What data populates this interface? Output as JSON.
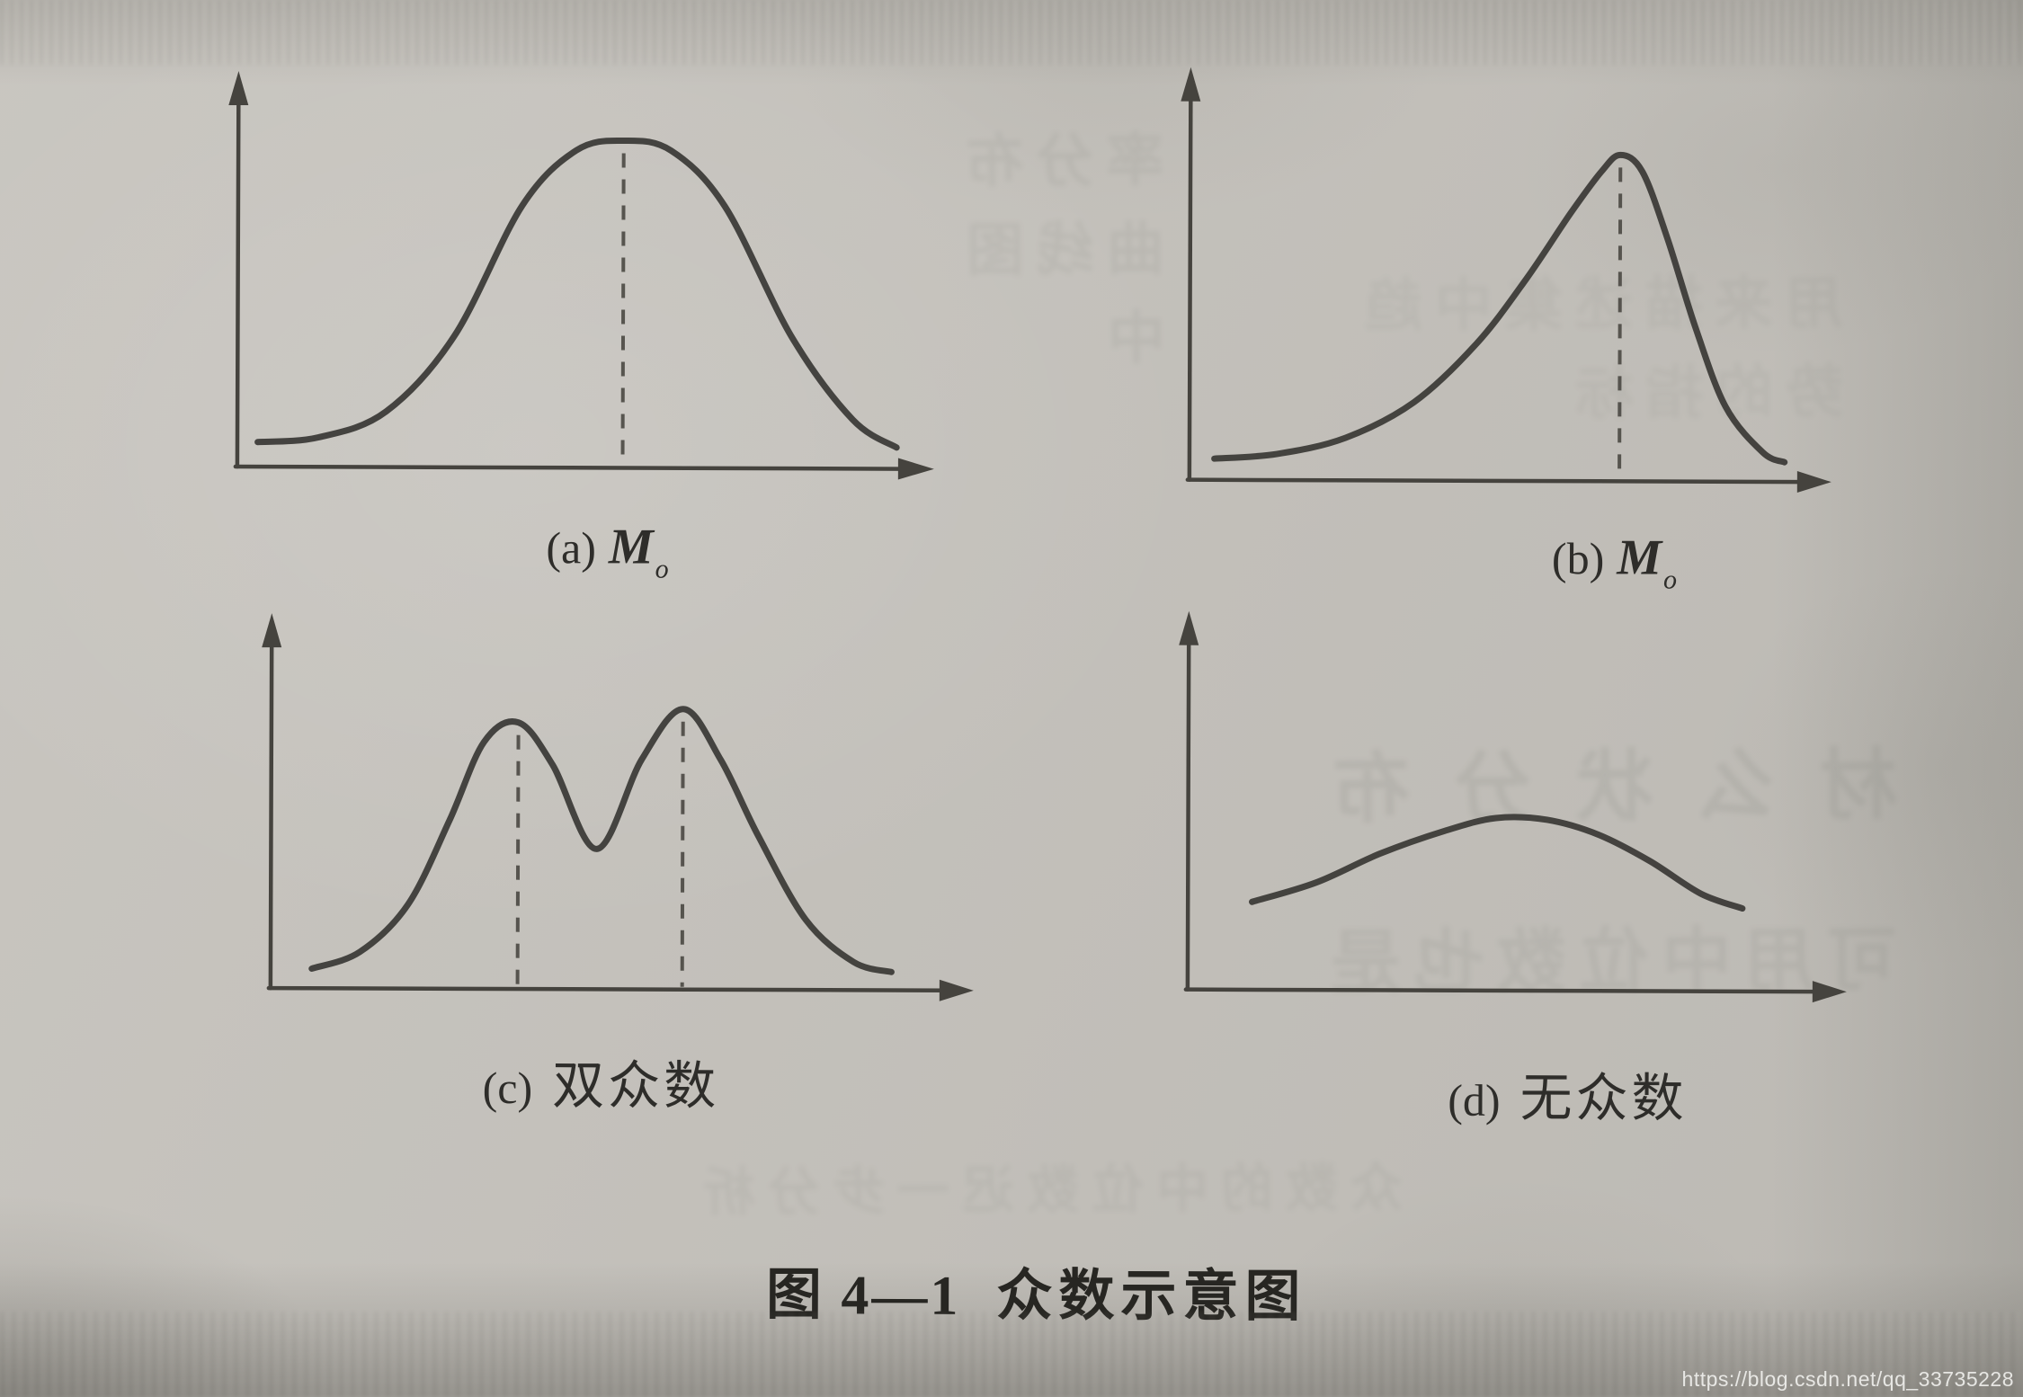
{
  "page": {
    "paper_color": "#c6c3bd",
    "ink_color": "#3a3936",
    "edge_shade_color": "#4e4c46"
  },
  "figure": {
    "panels": [
      {
        "id": "a",
        "label_prefix": "(a)",
        "label_symbol": "M",
        "label_subscript": "o"
      },
      {
        "id": "b",
        "label_prefix": "(b)",
        "label_symbol": "M",
        "label_subscript": "o"
      },
      {
        "id": "c",
        "label_prefix": "(c)",
        "label_text": "双众数"
      },
      {
        "id": "d",
        "label_prefix": "(d)",
        "label_text": "无众数"
      }
    ],
    "caption": {
      "prefix": "图 4—1",
      "text": "众数示意图"
    }
  },
  "watermark": {
    "url": "https://blog.csdn.net/qq_33735228"
  },
  "bleedthrough": {
    "illegible": true,
    "fragments": [
      "材 么 状 分 布",
      "可用中位数也是",
      "率分布曲线图中",
      "用来描述集中趋势的指标",
      "众数的中位数迟一步分析"
    ]
  },
  "chart_data": [
    {
      "id": "a",
      "type": "line",
      "title": "(a) M_o",
      "description": "Symmetric unimodal (bell-shaped) frequency curve; dashed vertical line marks the single mode M_o at the peak.",
      "xlabel": "",
      "ylabel": "",
      "axis_ticks": "none (schematic, arrowed axes)",
      "xlim": [
        0,
        1
      ],
      "ylim": [
        0,
        1
      ],
      "mode_lines_x": [
        0.57
      ],
      "curve": {
        "x": [
          0.03,
          0.12,
          0.22,
          0.32,
          0.42,
          0.5,
          0.57,
          0.64,
          0.72,
          0.82,
          0.91,
          0.975
        ],
        "y": [
          0.075,
          0.09,
          0.17,
          0.4,
          0.8,
          0.97,
          1.0,
          0.97,
          0.8,
          0.4,
          0.15,
          0.065
        ]
      }
    },
    {
      "id": "b",
      "type": "line",
      "title": "(b) M_o",
      "description": "Negatively skewed unimodal curve (long left tail); dashed vertical line marks the mode M_o near the right peak.",
      "xlabel": "",
      "ylabel": "",
      "axis_ticks": "none (schematic, arrowed axes)",
      "xlim": [
        0,
        1
      ],
      "ylim": [
        0,
        1
      ],
      "mode_lines_x": [
        0.69
      ],
      "curve": {
        "x": [
          0.04,
          0.14,
          0.25,
          0.36,
          0.46,
          0.54,
          0.61,
          0.66,
          0.69,
          0.725,
          0.765,
          0.81,
          0.86,
          0.92,
          0.955
        ],
        "y": [
          0.065,
          0.08,
          0.13,
          0.24,
          0.42,
          0.62,
          0.82,
          0.95,
          1.0,
          0.95,
          0.75,
          0.48,
          0.23,
          0.09,
          0.06
        ]
      }
    },
    {
      "id": "c",
      "type": "line",
      "title": "(c) 双众数",
      "description": "Bimodal frequency curve with two peaks; dashed vertical lines mark the two modes.",
      "xlabel": "",
      "ylabel": "",
      "axis_ticks": "none (schematic, arrowed axes)",
      "xlim": [
        0,
        1
      ],
      "ylim": [
        0,
        1
      ],
      "mode_lines_x": [
        0.36,
        0.6
      ],
      "curve": {
        "x": [
          0.06,
          0.13,
          0.2,
          0.26,
          0.31,
          0.36,
          0.41,
          0.475,
          0.54,
          0.6,
          0.655,
          0.71,
          0.78,
          0.85,
          0.905
        ],
        "y": [
          0.07,
          0.13,
          0.3,
          0.6,
          0.88,
          0.95,
          0.8,
          0.5,
          0.82,
          1.0,
          0.82,
          0.55,
          0.25,
          0.1,
          0.065
        ]
      }
    },
    {
      "id": "d",
      "type": "line",
      "title": "(d) 无众数",
      "description": "Flat plateau-like curve with no distinct peak — no mode; no dashed lines.",
      "xlabel": "",
      "ylabel": "",
      "axis_ticks": "none (schematic, arrowed axes)",
      "xlim": [
        0,
        1
      ],
      "ylim": [
        0,
        1
      ],
      "mode_lines_x": [],
      "curve": {
        "x": [
          0.1,
          0.2,
          0.3,
          0.4,
          0.48,
          0.56,
          0.64,
          0.72,
          0.8,
          0.865
        ],
        "y": [
          0.27,
          0.33,
          0.42,
          0.49,
          0.53,
          0.525,
          0.48,
          0.4,
          0.3,
          0.255
        ]
      }
    }
  ]
}
